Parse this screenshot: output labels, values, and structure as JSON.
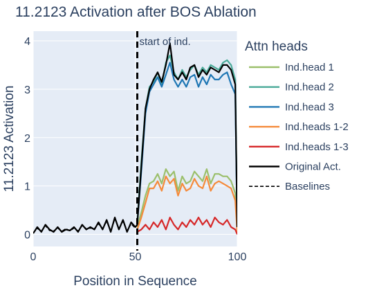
{
  "chart_data": {
    "type": "line",
    "title": "11.2123 Activation after BOS Ablation",
    "xlabel": "Position in Sequence",
    "ylabel": "11.2123 Activation",
    "xlim": [
      0,
      100
    ],
    "ylim": [
      -0.25,
      4.2
    ],
    "x_ticks": [
      0,
      50,
      100
    ],
    "y_ticks": [
      0,
      1,
      2,
      3,
      4
    ],
    "grid": true,
    "plot_background": "#e5ecf6",
    "legend_title": "Attn heads",
    "legend_position": "right",
    "annotation": {
      "text": "start of ind.",
      "x": 51
    },
    "vline": {
      "x": 51,
      "style": "dashed",
      "color": "#000000"
    },
    "series": [
      {
        "name": "Ind.head 1",
        "color": "#9bbf6b",
        "dash": "solid",
        "x": [
          51,
          53,
          55,
          57,
          59,
          61,
          63,
          65,
          67,
          69,
          71,
          73,
          75,
          77,
          79,
          81,
          83,
          85,
          87,
          89,
          91,
          93,
          95,
          97,
          99,
          100
        ],
        "y": [
          0.15,
          0.45,
          0.8,
          1.05,
          1.1,
          1.25,
          1.05,
          1.35,
          1.2,
          1.3,
          0.9,
          1.2,
          1.05,
          1.1,
          1.3,
          1.2,
          1.1,
          1.35,
          1.05,
          1.25,
          1.25,
          1.2,
          1.2,
          1.1,
          0.85,
          0.1
        ]
      },
      {
        "name": "Ind.head 2",
        "color": "#4aaa98",
        "dash": "solid",
        "x": [
          51,
          53,
          55,
          57,
          59,
          61,
          63,
          65,
          67,
          69,
          71,
          73,
          75,
          77,
          79,
          81,
          83,
          85,
          87,
          89,
          91,
          93,
          95,
          97,
          99,
          100
        ],
        "y": [
          0.25,
          1.5,
          2.6,
          3.05,
          3.15,
          3.35,
          3.1,
          3.55,
          3.7,
          3.35,
          3.2,
          3.4,
          3.25,
          3.4,
          3.5,
          3.3,
          3.45,
          3.35,
          3.5,
          3.45,
          3.4,
          3.55,
          3.6,
          3.5,
          3.2,
          0.15
        ]
      },
      {
        "name": "Ind.head 3",
        "color": "#1f77b4",
        "dash": "solid",
        "x": [
          51,
          53,
          55,
          57,
          59,
          61,
          63,
          65,
          67,
          69,
          71,
          73,
          75,
          77,
          79,
          81,
          83,
          85,
          87,
          89,
          91,
          93,
          95,
          97,
          99,
          100
        ],
        "y": [
          0.2,
          1.3,
          2.5,
          2.95,
          3.1,
          3.25,
          3.05,
          3.3,
          3.55,
          3.2,
          3.05,
          3.2,
          3.05,
          3.25,
          3.3,
          3.05,
          3.25,
          3.1,
          3.3,
          3.2,
          3.2,
          3.3,
          3.35,
          3.1,
          2.9,
          0.15
        ]
      },
      {
        "name": "Ind.heads 1-2",
        "color": "#f58a3a",
        "dash": "solid",
        "x": [
          51,
          53,
          55,
          57,
          59,
          61,
          63,
          65,
          67,
          69,
          71,
          73,
          75,
          77,
          79,
          81,
          83,
          85,
          87,
          89,
          91,
          93,
          95,
          97,
          99,
          100
        ],
        "y": [
          0.1,
          0.35,
          0.65,
          0.95,
          0.95,
          1.1,
          0.9,
          1.2,
          1.05,
          1.15,
          0.8,
          1.05,
          0.9,
          0.95,
          1.15,
          1.0,
          0.95,
          1.2,
          0.9,
          1.05,
          1.1,
          1.05,
          1.0,
          0.95,
          0.7,
          0.05
        ]
      },
      {
        "name": "Ind.heads 1-3",
        "color": "#d62728",
        "dash": "solid",
        "x": [
          51,
          53,
          55,
          57,
          59,
          61,
          63,
          65,
          67,
          69,
          71,
          73,
          75,
          77,
          79,
          81,
          83,
          85,
          87,
          89,
          91,
          93,
          95,
          97,
          99,
          100
        ],
        "y": [
          0.05,
          0.1,
          0.2,
          0.1,
          0.25,
          0.15,
          0.3,
          0.1,
          0.35,
          0.2,
          0.1,
          0.25,
          0.15,
          0.3,
          0.2,
          0.35,
          0.2,
          0.3,
          0.15,
          0.35,
          0.25,
          0.2,
          0.3,
          0.15,
          0.1,
          0.0
        ]
      },
      {
        "name": "Original Act.",
        "color": "#000000",
        "dash": "solid",
        "x": [
          0,
          2,
          4,
          6,
          8,
          10,
          12,
          14,
          16,
          18,
          20,
          22,
          24,
          26,
          28,
          30,
          32,
          34,
          36,
          38,
          40,
          42,
          44,
          46,
          48,
          50,
          51,
          53,
          55,
          57,
          59,
          61,
          63,
          65,
          67,
          69,
          71,
          73,
          75,
          77,
          79,
          81,
          83,
          85,
          87,
          89,
          91,
          93,
          95,
          97,
          99,
          100
        ],
        "y": [
          0.02,
          0.15,
          0.05,
          0.2,
          0.1,
          0.05,
          0.15,
          0.05,
          0.1,
          0.08,
          0.15,
          0.05,
          0.2,
          0.1,
          0.15,
          0.1,
          0.25,
          0.1,
          0.3,
          0.05,
          0.35,
          0.1,
          0.3,
          0.05,
          0.25,
          0.15,
          0.2,
          1.4,
          2.6,
          3.0,
          3.2,
          3.35,
          3.15,
          3.5,
          3.95,
          3.3,
          3.2,
          3.35,
          3.2,
          3.45,
          3.5,
          3.25,
          3.4,
          3.3,
          3.45,
          3.4,
          3.35,
          3.5,
          3.5,
          3.4,
          3.1,
          0.15
        ]
      },
      {
        "name": "Baselines",
        "color": "#000000",
        "dash": "dashed",
        "x": [
          0,
          2,
          4,
          6,
          8,
          10,
          12,
          14,
          16,
          18,
          20,
          22,
          24,
          26,
          28,
          30,
          32,
          34,
          36,
          38,
          40,
          42,
          44,
          46,
          48,
          50
        ],
        "y": [
          0.03,
          0.12,
          0.07,
          0.18,
          0.08,
          0.07,
          0.13,
          0.06,
          0.12,
          0.07,
          0.13,
          0.07,
          0.18,
          0.12,
          0.13,
          0.12,
          0.22,
          0.12,
          0.27,
          0.07,
          0.32,
          0.12,
          0.27,
          0.07,
          0.22,
          0.13
        ]
      }
    ]
  }
}
